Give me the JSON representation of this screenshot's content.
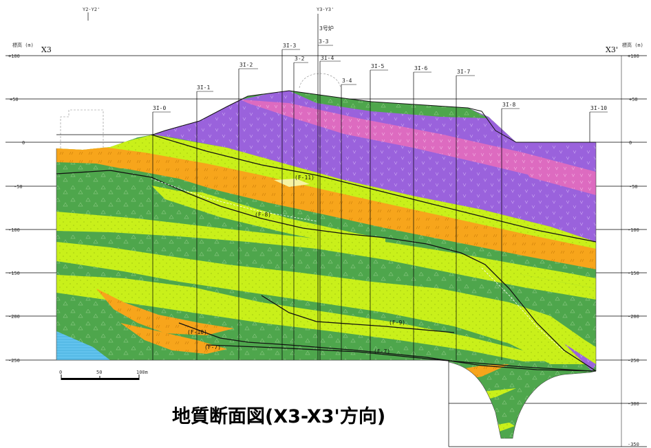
{
  "figure": {
    "title": "地質断面図(X3-X3'方向)",
    "left_end_label": "X3",
    "right_end_label": "X3'",
    "elevation_unit_left": "標高 (m)",
    "elevation_unit_right": "標高 (m)",
    "top_ref_left": "Y2-Y2'",
    "top_ref_mid": "Y3-Y3'",
    "unit_name": "3号炉"
  },
  "elevation_axis": {
    "ticks": [
      "+100",
      "+50",
      "0",
      "-50",
      "-100",
      "-150",
      "-200",
      "-250"
    ],
    "right_extra_ticks": [
      "-300",
      "-350"
    ]
  },
  "boreholes": [
    "3I-0",
    "3I-1",
    "3I-2",
    "3I-3",
    "3-2",
    "3-3",
    "3I-4",
    "3-4",
    "3I-5",
    "3I-6",
    "3I-7",
    "3I-8",
    "3I-10"
  ],
  "faults": [
    "(F-11)",
    "(F-8)",
    "(F-9)",
    "(F-10)",
    "(F-7)",
    "(F-7)"
  ],
  "scale_bar": {
    "labels": [
      "0",
      "50",
      "100m"
    ]
  },
  "colors": {
    "green_rock": "#4ea64c",
    "yellow_green": "#c9f01a",
    "orange": "#f7a51b",
    "purple": "#9a62dc",
    "pink": "#dd6bc0",
    "blue_water": "#62c3ee",
    "pale_yellow": "#f6f3a2"
  }
}
